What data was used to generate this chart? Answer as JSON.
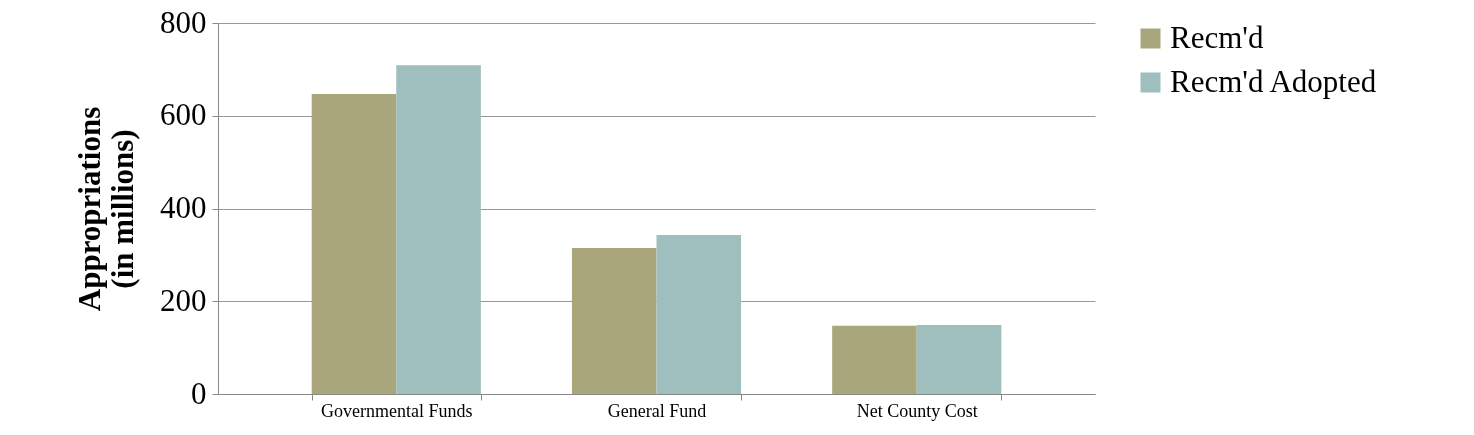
{
  "chart_data": {
    "type": "bar",
    "ylabel": "Appropriations\n(in millions)",
    "categories": [
      "Governmental Funds",
      "General Fund",
      "Net County Cost"
    ],
    "series": [
      {
        "name": "Recm'd",
        "color": "#a9a67c",
        "values": [
          647,
          315,
          147
        ]
      },
      {
        "name": "Recm'd Adopted",
        "color": "#9fbebe",
        "values": [
          709,
          343,
          149
        ]
      }
    ],
    "ylim": [
      0,
      800
    ],
    "yticks": [
      0,
      200,
      400,
      600,
      800
    ],
    "grid": "y",
    "legend": "right"
  }
}
